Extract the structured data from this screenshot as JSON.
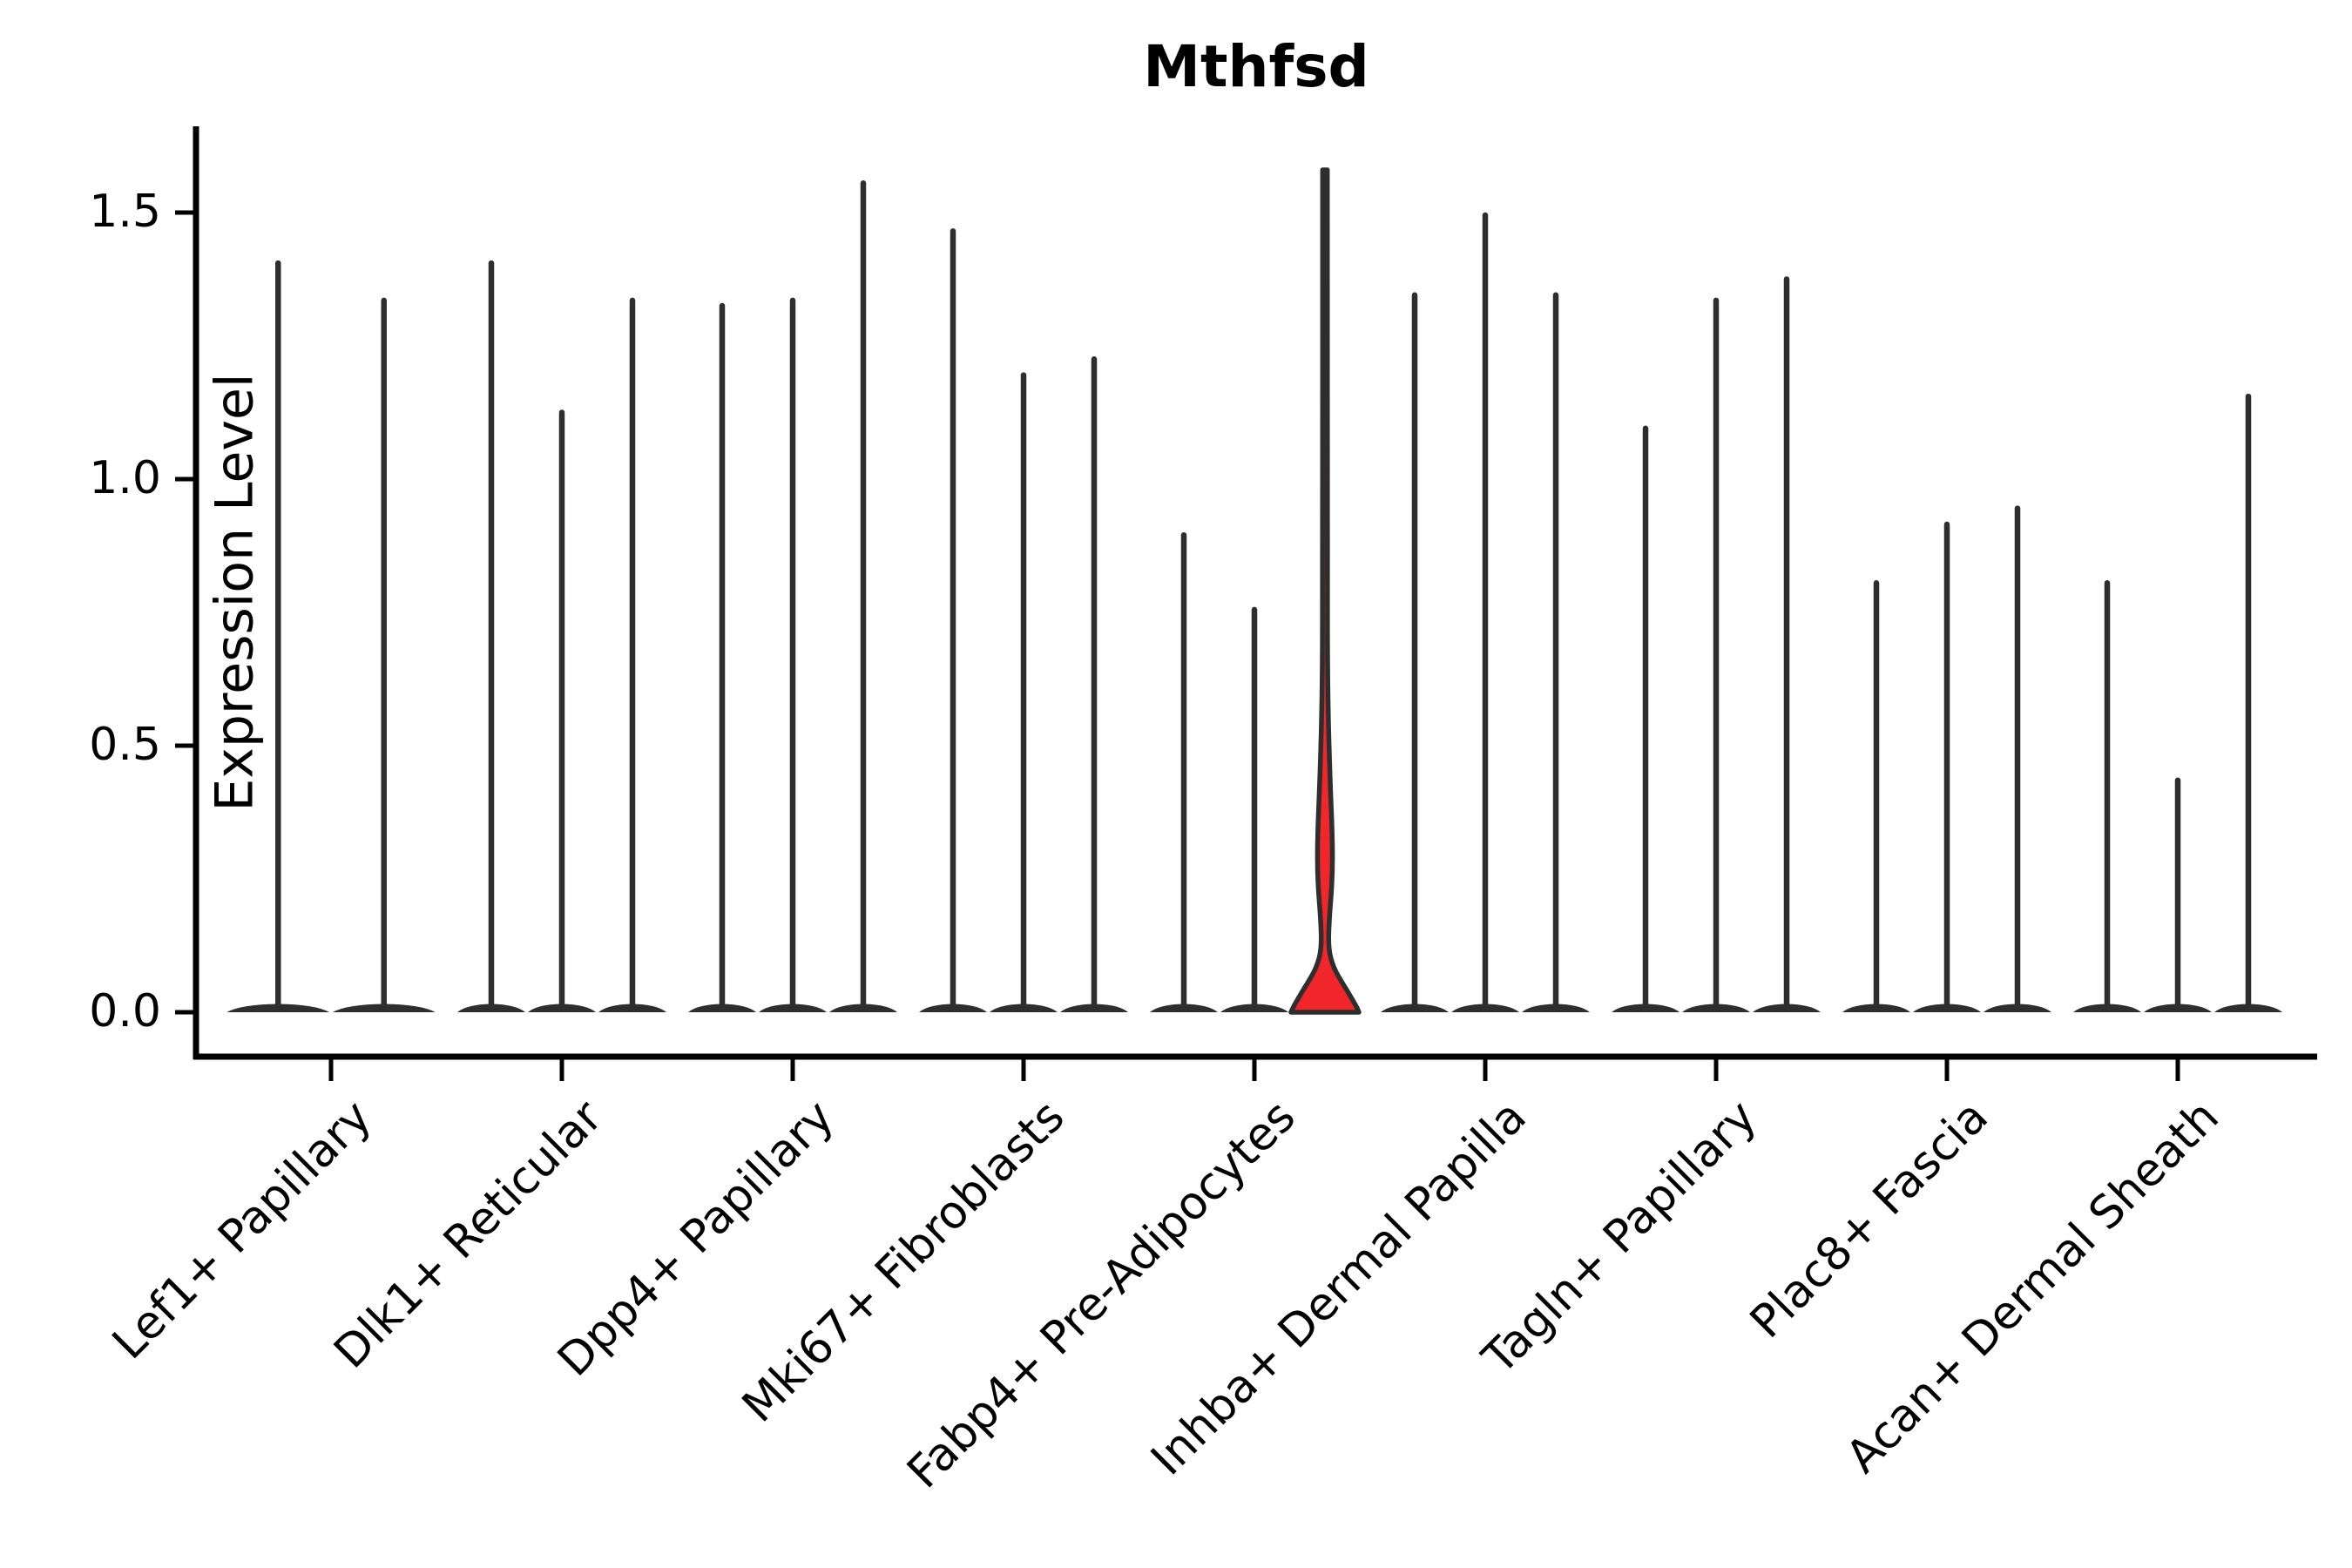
{
  "chart_data": {
    "type": "violin",
    "title": "Mthfsd",
    "ylabel": "Expression Level",
    "ylim": [
      0,
      1.66
    ],
    "grid": false,
    "legend": "none",
    "y_ticks": [
      {
        "label": "1.5",
        "value": 1.5
      },
      {
        "label": "1.0",
        "value": 1.0
      },
      {
        "label": "0.5",
        "value": 0.5
      },
      {
        "label": "0.0",
        "value": 0.0
      }
    ],
    "colors": {
      "violin_outline": "#2e2e2e",
      "highlight_fill": "#f0262a",
      "axis": "#000000",
      "background": "#ffffff"
    },
    "groups": [
      {
        "label": "Lef1+ Papillary",
        "violins": [
          {
            "max": 1.41,
            "highlight": false
          },
          {
            "max": 1.34,
            "highlight": false
          }
        ]
      },
      {
        "label": "Dlk1+ Reticular",
        "violins": [
          {
            "max": 1.41,
            "highlight": false
          },
          {
            "max": 1.13,
            "highlight": false
          },
          {
            "max": 1.34,
            "highlight": false
          }
        ]
      },
      {
        "label": "Dpp4+ Papillary",
        "violins": [
          {
            "max": 1.33,
            "highlight": false
          },
          {
            "max": 1.34,
            "highlight": false
          },
          {
            "max": 1.56,
            "highlight": false
          }
        ]
      },
      {
        "label": "Mki67+ Fibroblasts",
        "violins": [
          {
            "max": 1.47,
            "highlight": false
          },
          {
            "max": 1.2,
            "highlight": false
          },
          {
            "max": 1.23,
            "highlight": false
          }
        ]
      },
      {
        "label": "Fabp4+ Pre-Adipocytes",
        "violins": [
          {
            "max": 0.9,
            "highlight": false
          },
          {
            "max": 0.76,
            "highlight": false
          },
          {
            "max": 1.58,
            "highlight": true,
            "density_profile": [
              [
                1.58,
                0.07
              ],
              [
                0.8,
                0.07
              ],
              [
                0.6,
                0.08
              ],
              [
                0.45,
                0.14
              ],
              [
                0.33,
                0.22
              ],
              [
                0.25,
                0.22
              ],
              [
                0.17,
                0.12
              ],
              [
                0.12,
                0.1
              ],
              [
                0.085,
                0.24
              ],
              [
                0.055,
                0.51
              ],
              [
                0.028,
                0.77
              ],
              [
                0.008,
                0.95
              ],
              [
                0.0,
                1.0
              ]
            ]
          }
        ]
      },
      {
        "label": "Inhba+ Dermal Papilla",
        "violins": [
          {
            "max": 1.35,
            "highlight": false
          },
          {
            "max": 1.5,
            "highlight": false
          },
          {
            "max": 1.35,
            "highlight": false
          }
        ]
      },
      {
        "label": "Tagln+ Papillary",
        "violins": [
          {
            "max": 1.1,
            "highlight": false
          },
          {
            "max": 1.34,
            "highlight": false
          },
          {
            "max": 1.38,
            "highlight": false
          }
        ]
      },
      {
        "label": "Plac8+ Fascia",
        "violins": [
          {
            "max": 0.81,
            "highlight": false
          },
          {
            "max": 0.92,
            "highlight": false
          },
          {
            "max": 0.95,
            "highlight": false
          }
        ]
      },
      {
        "label": "Acan+ Dermal Sheath",
        "violins": [
          {
            "max": 0.81,
            "highlight": false
          },
          {
            "max": 0.44,
            "highlight": false
          },
          {
            "max": 1.16,
            "highlight": false
          }
        ]
      }
    ]
  }
}
